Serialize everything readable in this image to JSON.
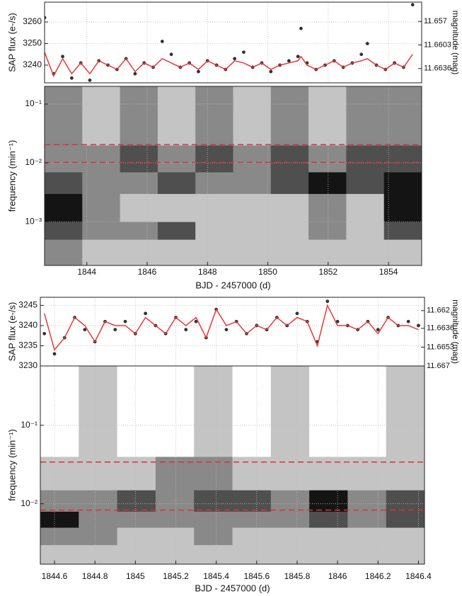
{
  "chart_data": [
    {
      "type": "line",
      "ylabel": "SAP flux (e-/s)",
      "y2label": "magnitude (mag)",
      "xlim": [
        1842.6,
        1855.1
      ],
      "ylim": [
        3231.8,
        3269.2
      ],
      "yticks": [
        3240,
        3250,
        3260
      ],
      "y2lim": [
        11.6656,
        11.6543
      ],
      "y2ticks": [
        11.6636,
        11.6603,
        11.657
      ],
      "grid": true,
      "x": [
        1842.6,
        1842.9,
        1843.2,
        1843.5,
        1843.8,
        1844.1,
        1844.4,
        1844.7,
        1845.0,
        1845.3,
        1845.6,
        1845.9,
        1846.2,
        1846.5,
        1846.8,
        1847.1,
        1847.4,
        1847.7,
        1848.0,
        1848.3,
        1848.6,
        1848.9,
        1849.2,
        1849.5,
        1849.8,
        1850.1,
        1850.4,
        1850.7,
        1851.0,
        1851.1,
        1851.3,
        1851.6,
        1851.9,
        1852.2,
        1852.5,
        1852.8,
        1853.1,
        1853.3,
        1853.6,
        1853.9,
        1854.2,
        1854.5,
        1854.8
      ],
      "series": [
        {
          "color": "#333333",
          "marker": "dot",
          "values": [
            3262,
            3236,
            3244,
            3234,
            3241,
            3233,
            3242,
            3240,
            3238,
            3243,
            3236,
            3241,
            3239,
            3251,
            3245,
            3239,
            3241,
            3237,
            3242,
            3240,
            3238,
            3243,
            3246,
            3239,
            3241,
            3237,
            3240,
            3242,
            3244,
            3257,
            3241,
            3238,
            3240,
            3242,
            3239,
            3241,
            3245,
            3250,
            3240,
            3238,
            3241,
            3239,
            3268
          ]
        },
        {
          "color": "#e8383a",
          "marker": "line",
          "values": [
            3246,
            3235,
            3243,
            3236,
            3241,
            3236,
            3242,
            3240,
            3238,
            3243,
            3237,
            3241,
            3239,
            3243,
            3241,
            3239,
            3241,
            3238,
            3242,
            3240,
            3238,
            3242,
            3241,
            3239,
            3241,
            3238,
            3240,
            3241,
            3242,
            3244,
            3240,
            3238,
            3240,
            3242,
            3239,
            3241,
            3242,
            3243,
            3240,
            3238,
            3241,
            3239,
            3245
          ]
        }
      ]
    },
    {
      "type": "heatmap",
      "ylabel": "frequency (min⁻¹)",
      "xlabel": "BJD - 2457000 (d)",
      "xlim": [
        1842.6,
        1855.1
      ],
      "xticks": [
        1844,
        1846,
        1848,
        1850,
        1852,
        1854
      ],
      "ylim": [
        0.00018,
        0.2
      ],
      "log_y": true,
      "yticks": [
        {
          "value": 0.001,
          "label": "10⁻³"
        },
        {
          "value": 0.01,
          "label": "10⁻²"
        },
        {
          "value": 0.1,
          "label": "10⁻¹"
        }
      ],
      "x_edges": [
        1842.6,
        1843.85,
        1845.1,
        1846.35,
        1847.6,
        1848.85,
        1850.1,
        1851.35,
        1852.6,
        1853.85,
        1855.1
      ],
      "y_edges": [
        0.00018,
        0.0005,
        0.001,
        0.003,
        0.007,
        0.02,
        0.2
      ],
      "zlim": [
        0,
        4
      ],
      "power": [
        [
          2,
          1,
          1,
          1,
          1,
          1,
          1,
          1,
          1,
          1
        ],
        [
          3,
          2,
          2,
          3,
          1,
          1,
          1,
          2,
          1,
          3
        ],
        [
          4,
          2,
          1,
          1,
          1,
          1,
          1,
          2,
          1,
          4
        ],
        [
          3,
          2,
          2,
          3,
          2,
          2,
          3,
          4,
          3,
          4
        ],
        [
          2,
          2,
          3,
          2,
          3,
          2,
          3,
          2,
          3,
          3
        ],
        [
          2,
          1,
          2,
          1,
          2,
          1,
          2,
          1,
          2,
          2
        ]
      ],
      "reference_lines": [
        {
          "value": 0.0204,
          "color": "#e03030"
        },
        {
          "value": 0.0102,
          "color": "#e03030"
        }
      ]
    },
    {
      "type": "line",
      "ylabel": "SAP flux (e-/s)",
      "y2label": "magnitude (mag)",
      "xlim": [
        1844.53,
        1846.43
      ],
      "ylim": [
        3230,
        3247
      ],
      "yticks": [
        3230,
        3235,
        3240,
        3245
      ],
      "y2lim": [
        11.667,
        11.6608
      ],
      "y2ticks": [
        11.667,
        11.6653,
        11.6636,
        11.662
      ],
      "grid": true,
      "x": [
        1844.55,
        1844.6,
        1844.65,
        1844.7,
        1844.75,
        1844.8,
        1844.85,
        1844.9,
        1844.95,
        1845.0,
        1845.05,
        1845.1,
        1845.15,
        1845.2,
        1845.25,
        1845.3,
        1845.35,
        1845.4,
        1845.45,
        1845.5,
        1845.55,
        1845.6,
        1845.65,
        1845.7,
        1845.75,
        1845.8,
        1845.85,
        1845.9,
        1845.95,
        1846.0,
        1846.05,
        1846.1,
        1846.15,
        1846.2,
        1846.25,
        1846.3,
        1846.35,
        1846.4
      ],
      "series": [
        {
          "color": "#333333",
          "marker": "dot",
          "values": [
            3238,
            3233,
            3237,
            3242,
            3239,
            3236,
            3241,
            3239,
            3241,
            3238,
            3243,
            3240,
            3238,
            3242,
            3239,
            3241,
            3237,
            3244,
            3239,
            3241,
            3238,
            3240,
            3239,
            3242,
            3240,
            3243,
            3241,
            3236,
            3246,
            3241,
            3240,
            3239,
            3241,
            3239,
            3242,
            3240,
            3241,
            3240
          ]
        },
        {
          "color": "#e8383a",
          "marker": "line",
          "values": [
            3243,
            3234,
            3237,
            3242,
            3240,
            3236,
            3241,
            3240,
            3240,
            3238,
            3242,
            3240,
            3238,
            3242,
            3240,
            3242,
            3237,
            3244,
            3240,
            3241,
            3238,
            3240,
            3239,
            3242,
            3240,
            3242,
            3241,
            3235,
            3245,
            3240,
            3240,
            3239,
            3241,
            3238,
            3242,
            3240,
            3240,
            3239
          ]
        }
      ]
    },
    {
      "type": "heatmap",
      "ylabel": "frequency (min⁻¹)",
      "xlabel": "BJD - 2457000 (d)",
      "xlim": [
        1844.53,
        1846.43
      ],
      "xticks": [
        1844.6,
        1844.8,
        1845,
        1845.2,
        1845.4,
        1845.6,
        1845.8,
        1846,
        1846.2,
        1846.4
      ],
      "ylim": [
        0.0017,
        0.57
      ],
      "log_y": true,
      "yticks": [
        {
          "value": 0.01,
          "label": "10⁻²"
        },
        {
          "value": 0.1,
          "label": "10⁻¹"
        }
      ],
      "x_edges": [
        1844.53,
        1844.72,
        1844.91,
        1845.1,
        1845.29,
        1845.48,
        1845.67,
        1845.86,
        1846.05,
        1846.24,
        1846.43
      ],
      "y_edges": [
        0.0017,
        0.003,
        0.005,
        0.008,
        0.015,
        0.04,
        0.57
      ],
      "zlim": [
        0,
        4
      ],
      "power": [
        [
          1,
          1,
          1,
          1,
          1,
          1,
          1,
          1,
          1,
          1
        ],
        [
          2,
          2,
          1,
          1,
          2,
          1,
          1,
          1,
          1,
          1
        ],
        [
          4,
          2,
          2,
          2,
          2,
          2,
          2,
          3,
          2,
          3
        ],
        [
          2,
          2,
          3,
          2,
          3,
          3,
          2,
          4,
          2,
          3
        ],
        [
          1,
          1,
          1,
          2,
          2,
          1,
          1,
          1,
          1,
          1
        ],
        [
          0,
          1,
          0,
          0,
          1,
          0,
          1,
          0,
          0,
          1
        ]
      ],
      "reference_lines": [
        {
          "value": 0.034,
          "color": "#e03030"
        },
        {
          "value": 0.0083,
          "color": "#e03030"
        }
      ]
    }
  ]
}
